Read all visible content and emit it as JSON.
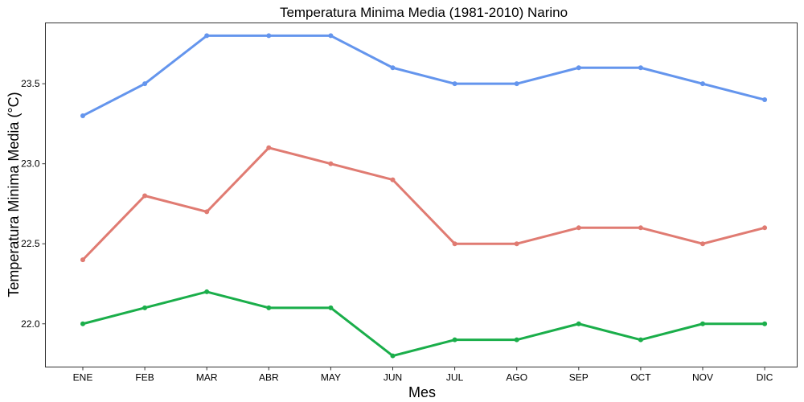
{
  "chart_data": {
    "type": "line",
    "title": "Temperatura Minima Media (1981-2010)  Narino",
    "xlabel": "Mes",
    "ylabel": "Temperatura Minima Media  (°C)",
    "categories": [
      "ENE",
      "FEB",
      "MAR",
      "ABR",
      "MAY",
      "JUN",
      "JUL",
      "AGO",
      "SEP",
      "OCT",
      "NOV",
      "DIC"
    ],
    "ylim": [
      21.73,
      23.88
    ],
    "yticks": [
      "22.0",
      "22.5",
      "23.0",
      "23.5"
    ],
    "grid": false,
    "series": [
      {
        "color": "#6495ED",
        "values": [
          23.3,
          23.5,
          23.8,
          23.8,
          23.8,
          23.6,
          23.5,
          23.5,
          23.6,
          23.6,
          23.5,
          23.4
        ]
      },
      {
        "color": "#E07B72",
        "values": [
          22.4,
          22.8,
          22.7,
          23.1,
          23.0,
          22.9,
          22.5,
          22.5,
          22.6,
          22.6,
          22.5,
          22.6
        ]
      },
      {
        "color": "#1AAE4A",
        "values": [
          22.0,
          22.1,
          22.2,
          22.1,
          22.1,
          21.8,
          21.9,
          21.9,
          22.0,
          21.9,
          22.0,
          22.0
        ]
      }
    ]
  }
}
